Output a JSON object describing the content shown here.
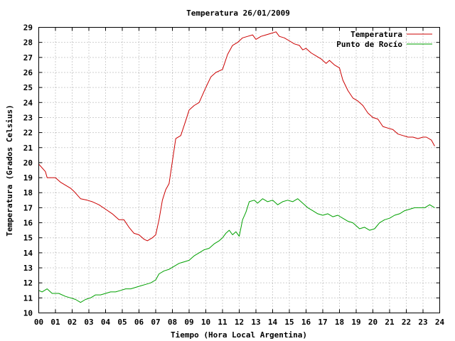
{
  "chart_data": {
    "type": "line",
    "title": "Temperatura 26/01/2009",
    "xlabel": "Tiempo (Hora Local Argentina)",
    "ylabel": "Temperatura (Grados Celsius)",
    "xlim": [
      0,
      24
    ],
    "ylim": [
      10,
      29
    ],
    "xticks": [
      "00",
      "01",
      "02",
      "03",
      "04",
      "05",
      "06",
      "07",
      "08",
      "09",
      "10",
      "11",
      "12",
      "13",
      "14",
      "15",
      "16",
      "17",
      "18",
      "19",
      "20",
      "21",
      "22",
      "23",
      "24"
    ],
    "yticks": [
      10,
      11,
      12,
      13,
      14,
      15,
      16,
      17,
      18,
      19,
      20,
      21,
      22,
      23,
      24,
      25,
      26,
      27,
      28,
      29
    ],
    "grid": true,
    "legend_position": "top-right",
    "series": [
      {
        "name": "Temperatura",
        "color": "#cc0000",
        "x": [
          0,
          0.4,
          0.5,
          1.0,
          1.3,
          1.6,
          1.9,
          2.1,
          2.5,
          2.9,
          3.2,
          3.6,
          4.0,
          4.4,
          4.8,
          5.1,
          5.4,
          5.7,
          6.0,
          6.3,
          6.5,
          6.8,
          7.0,
          7.2,
          7.4,
          7.6,
          7.8,
          8.0,
          8.2,
          8.5,
          8.8,
          9.0,
          9.3,
          9.6,
          10.0,
          10.3,
          10.6,
          11.0,
          11.3,
          11.6,
          11.9,
          12.2,
          12.5,
          12.8,
          13.0,
          13.3,
          13.6,
          13.9,
          14.2,
          14.4,
          14.7,
          15.0,
          15.3,
          15.6,
          15.8,
          16.0,
          16.3,
          16.6,
          16.9,
          17.2,
          17.4,
          17.7,
          18.0,
          18.2,
          18.5,
          18.8,
          19.1,
          19.4,
          19.7,
          20.0,
          20.3,
          20.6,
          20.9,
          21.2,
          21.5,
          21.8,
          22.1,
          22.4,
          22.7,
          23.0,
          23.2,
          23.5,
          23.7
        ],
        "y": [
          19.9,
          19.4,
          19.0,
          19.0,
          18.7,
          18.5,
          18.3,
          18.1,
          17.6,
          17.5,
          17.4,
          17.2,
          16.9,
          16.6,
          16.2,
          16.2,
          15.7,
          15.3,
          15.2,
          14.9,
          14.8,
          15.0,
          15.2,
          16.2,
          17.5,
          18.2,
          18.6,
          20.1,
          21.6,
          21.8,
          22.8,
          23.5,
          23.8,
          24.0,
          25.0,
          25.7,
          26.0,
          26.2,
          27.2,
          27.8,
          28.0,
          28.3,
          28.4,
          28.5,
          28.2,
          28.4,
          28.5,
          28.6,
          28.7,
          28.4,
          28.3,
          28.1,
          27.9,
          27.8,
          27.5,
          27.6,
          27.3,
          27.1,
          26.9,
          26.6,
          26.8,
          26.5,
          26.3,
          25.5,
          24.8,
          24.3,
          24.1,
          23.8,
          23.3,
          23.0,
          22.9,
          22.4,
          22.3,
          22.2,
          21.9,
          21.8,
          21.7,
          21.7,
          21.6,
          21.7,
          21.7,
          21.5,
          21.1
        ]
      },
      {
        "name": "Punto de Rocío",
        "color": "#00a000",
        "x": [
          0,
          0.2,
          0.5,
          0.8,
          1.2,
          1.6,
          1.9,
          2.2,
          2.5,
          2.8,
          3.1,
          3.4,
          3.7,
          4.0,
          4.3,
          4.6,
          4.9,
          5.2,
          5.5,
          5.8,
          6.1,
          6.4,
          6.7,
          7.0,
          7.2,
          7.5,
          7.8,
          8.1,
          8.4,
          8.7,
          9.0,
          9.3,
          9.6,
          9.9,
          10.2,
          10.5,
          10.8,
          11.0,
          11.2,
          11.4,
          11.6,
          11.8,
          12.0,
          12.2,
          12.4,
          12.6,
          12.9,
          13.1,
          13.4,
          13.7,
          14.0,
          14.3,
          14.6,
          14.9,
          15.2,
          15.5,
          15.8,
          16.1,
          16.4,
          16.7,
          17.0,
          17.3,
          17.6,
          17.9,
          18.2,
          18.5,
          18.8,
          19.0,
          19.2,
          19.5,
          19.8,
          20.1,
          20.4,
          20.7,
          21.0,
          21.3,
          21.6,
          21.9,
          22.2,
          22.5,
          22.8,
          23.1,
          23.4,
          23.7
        ],
        "y": [
          11.5,
          11.4,
          11.6,
          11.3,
          11.3,
          11.1,
          11.0,
          10.9,
          10.7,
          10.9,
          11.0,
          11.2,
          11.2,
          11.3,
          11.4,
          11.4,
          11.5,
          11.6,
          11.6,
          11.7,
          11.8,
          11.9,
          12.0,
          12.2,
          12.6,
          12.8,
          12.9,
          13.1,
          13.3,
          13.4,
          13.5,
          13.8,
          14.0,
          14.2,
          14.3,
          14.6,
          14.8,
          15.0,
          15.3,
          15.5,
          15.2,
          15.4,
          15.1,
          16.2,
          16.7,
          17.4,
          17.5,
          17.3,
          17.6,
          17.4,
          17.5,
          17.2,
          17.4,
          17.5,
          17.4,
          17.6,
          17.3,
          17.0,
          16.8,
          16.6,
          16.5,
          16.6,
          16.4,
          16.5,
          16.3,
          16.1,
          16.0,
          15.8,
          15.6,
          15.7,
          15.5,
          15.6,
          16.0,
          16.2,
          16.3,
          16.5,
          16.6,
          16.8,
          16.9,
          17.0,
          17.0,
          17.0,
          17.2,
          17.0
        ]
      }
    ]
  }
}
